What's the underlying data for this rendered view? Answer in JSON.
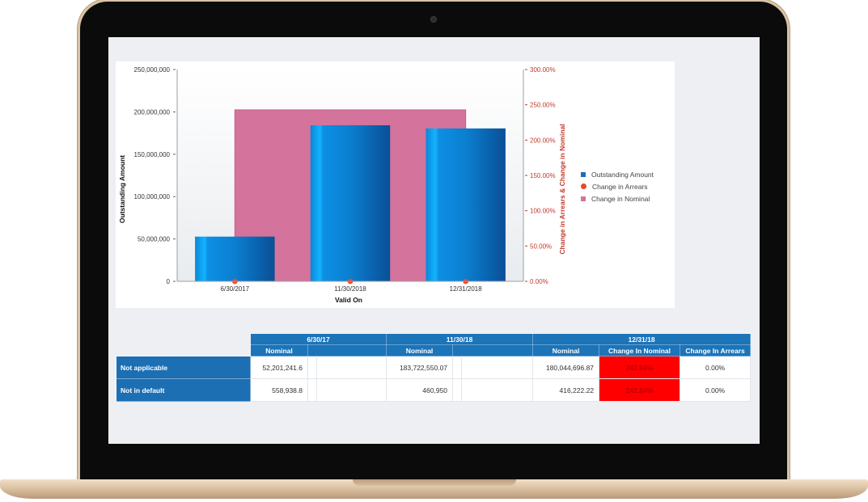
{
  "chart": {
    "left_axis_title": "Outstanding Amount",
    "right_axis_title": "Change in Arrears & Change in Nominal",
    "x_axis_title": "Valid On",
    "left_ticks": [
      "250,000,000",
      "200,000,000",
      "150,000,000",
      "100,000,000",
      "50,000,000",
      "0"
    ],
    "right_ticks": [
      "300.00%",
      "250.00%",
      "200.00%",
      "150.00%",
      "100.00%",
      "50.00%",
      "0.00%"
    ],
    "legend": [
      {
        "label": "Outstanding Amount",
        "color": "#1a6eb5",
        "shape": "square"
      },
      {
        "label": "Change in Arrears",
        "color": "#e8492b",
        "shape": "circle"
      },
      {
        "label": "Change in Nominal",
        "color": "#d4739b",
        "shape": "square"
      }
    ]
  },
  "chart_data": {
    "type": "bar",
    "categories": [
      "6/30/2017",
      "11/30/2018",
      "12/31/2018"
    ],
    "series": [
      {
        "name": "Outstanding Amount",
        "type": "bar",
        "axis": "left",
        "values": [
          52760180,
          184183501,
          180460919
        ],
        "color": "#1a9ae8"
      },
      {
        "name": "Change in Arrears",
        "type": "scatter",
        "axis": "right",
        "values": [
          0,
          0,
          0
        ],
        "color": "#e8492b"
      },
      {
        "name": "Change in Nominal",
        "type": "area",
        "axis": "right",
        "values": [
          242.84,
          242.84,
          242.84
        ],
        "color": "#d4739b"
      }
    ],
    "xlabel": "Valid On",
    "ylabel": "Outstanding Amount",
    "y2label": "Change in Arrears & Change in Nominal",
    "ylim": [
      0,
      250000000
    ],
    "y2lim": [
      0,
      300
    ],
    "grid": false,
    "legend_position": "right"
  },
  "table": {
    "groups": [
      "6/30/17",
      "11/30/18",
      "12/31/18"
    ],
    "subheaders": {
      "nominal": "Nominal",
      "change_nominal": "Change In Nominal",
      "change_arrears": "Change In Arrears"
    },
    "rows": [
      {
        "label": "Not applicable",
        "v1": "52,201,241.6",
        "v2": "183,722,550.07",
        "v3": "180,044,696.87",
        "change_nominal": "242.84%",
        "change_arrears": "0.00%"
      },
      {
        "label": "Not in default",
        "v1": "558,938.8",
        "v2": "460,950",
        "v3": "416,222.22",
        "change_nominal": "242.84%",
        "change_arrears": "0.00%"
      }
    ]
  }
}
